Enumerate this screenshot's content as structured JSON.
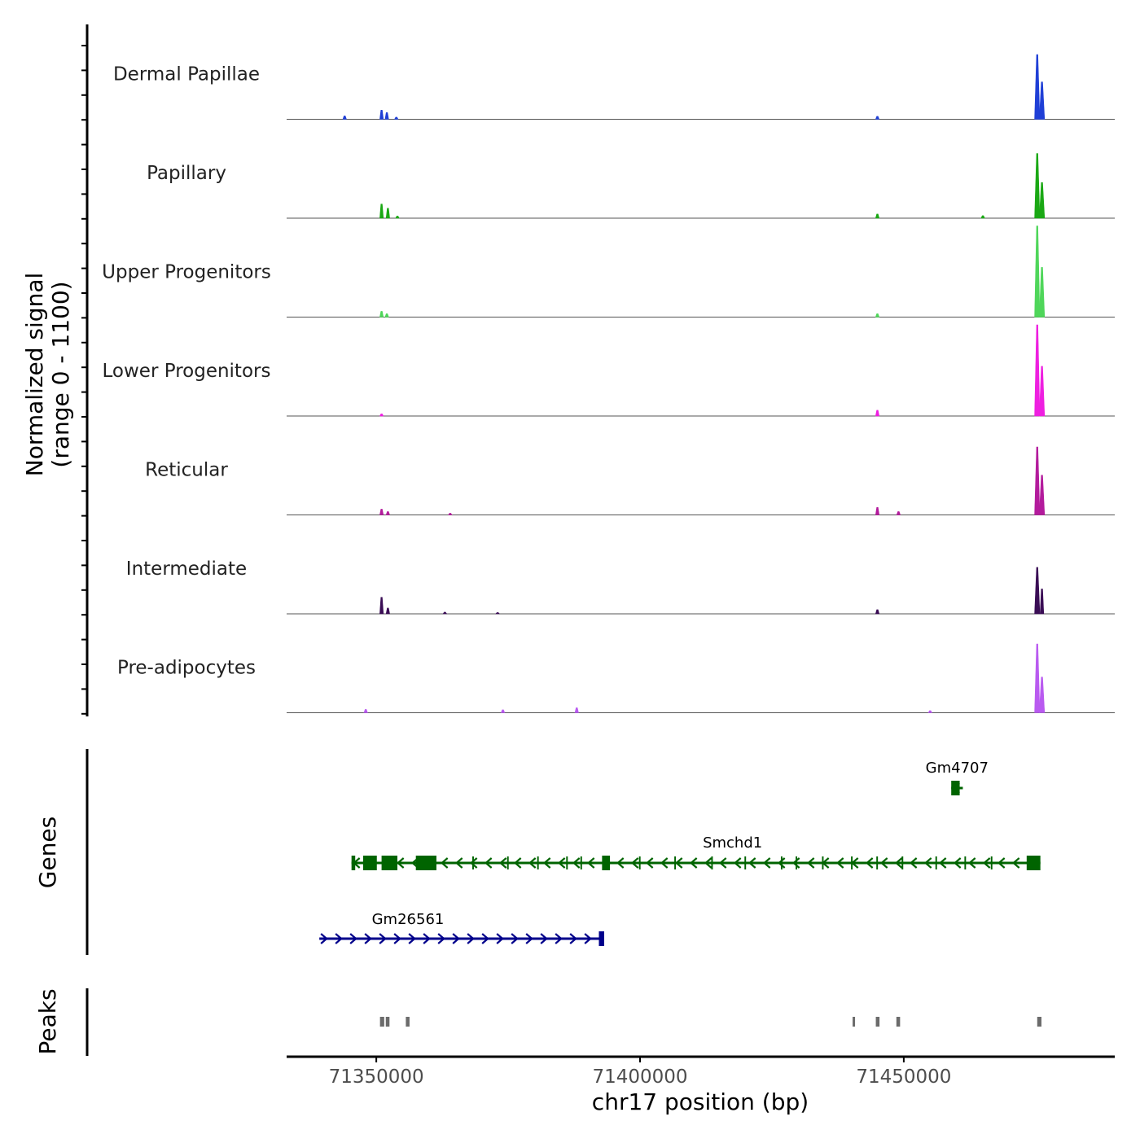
{
  "chart_data": {
    "type": "area",
    "title": "",
    "ylabel_line1": "Normalized signal",
    "ylabel_line2": "(range 0 - 1100)",
    "y_range": [
      0,
      1100
    ],
    "xlabel": "chr17 position (bp)",
    "x_range": [
      71333000,
      71490000
    ],
    "x_ticks": [
      71350000,
      71400000,
      71450000
    ],
    "x_tick_labels": [
      "71350000",
      "71400000",
      "71450000"
    ],
    "tracks": [
      {
        "name": "Dermal Papillae",
        "color": "#1f3fd6",
        "peaks": [
          {
            "x": 71344000,
            "v": 40
          },
          {
            "x": 71351000,
            "v": 110
          },
          {
            "x": 71352000,
            "v": 80
          },
          {
            "x": 71353800,
            "v": 25
          },
          {
            "x": 71445000,
            "v": 35
          },
          {
            "x": 71475300,
            "v": 780
          },
          {
            "x": 71476200,
            "v": 450
          }
        ]
      },
      {
        "name": "Papillary",
        "color": "#1aa814",
        "peaks": [
          {
            "x": 71351000,
            "v": 170
          },
          {
            "x": 71352200,
            "v": 120
          },
          {
            "x": 71354000,
            "v": 25
          },
          {
            "x": 71445000,
            "v": 50
          },
          {
            "x": 71465000,
            "v": 30
          },
          {
            "x": 71475300,
            "v": 780
          },
          {
            "x": 71476200,
            "v": 430
          }
        ]
      },
      {
        "name": "Upper Progenitors",
        "color": "#4fd65a",
        "peaks": [
          {
            "x": 71351000,
            "v": 70
          },
          {
            "x": 71352000,
            "v": 40
          },
          {
            "x": 71445000,
            "v": 40
          },
          {
            "x": 71475300,
            "v": 1100
          },
          {
            "x": 71476200,
            "v": 600
          }
        ]
      },
      {
        "name": "Lower Progenitors",
        "color": "#ee1fe0",
        "peaks": [
          {
            "x": 71351000,
            "v": 25
          },
          {
            "x": 71445000,
            "v": 70
          },
          {
            "x": 71475300,
            "v": 1100
          },
          {
            "x": 71476200,
            "v": 600
          }
        ]
      },
      {
        "name": "Reticular",
        "color": "#b31b9c",
        "peaks": [
          {
            "x": 71351000,
            "v": 70
          },
          {
            "x": 71352200,
            "v": 40
          },
          {
            "x": 71364000,
            "v": 20
          },
          {
            "x": 71445000,
            "v": 90
          },
          {
            "x": 71449000,
            "v": 40
          },
          {
            "x": 71475300,
            "v": 820
          },
          {
            "x": 71476200,
            "v": 480
          }
        ]
      },
      {
        "name": "Intermediate",
        "color": "#3a0d55",
        "peaks": [
          {
            "x": 71351000,
            "v": 200
          },
          {
            "x": 71352200,
            "v": 70
          },
          {
            "x": 71363000,
            "v": 20
          },
          {
            "x": 71373000,
            "v": 15
          },
          {
            "x": 71445000,
            "v": 50
          },
          {
            "x": 71475300,
            "v": 560
          },
          {
            "x": 71476200,
            "v": 300
          }
        ]
      },
      {
        "name": "Pre-adipocytes",
        "color": "#b95af0",
        "peaks": [
          {
            "x": 71348000,
            "v": 40
          },
          {
            "x": 71374000,
            "v": 35
          },
          {
            "x": 71388000,
            "v": 60
          },
          {
            "x": 71455000,
            "v": 25
          },
          {
            "x": 71475300,
            "v": 830
          },
          {
            "x": 71476200,
            "v": 430
          }
        ]
      }
    ],
    "genes_label": "Genes",
    "genes": [
      {
        "name": "Gm4707",
        "start": 71459000,
        "end": 71461200,
        "strand": "-",
        "color": "#006400",
        "row": 0,
        "exons": [
          [
            71459000,
            71460600
          ]
        ]
      },
      {
        "name": "Smchd1",
        "start": 71345300,
        "end": 71475900,
        "strand": "-",
        "color": "#006400",
        "row": 1,
        "exons": [
          [
            71345300,
            71346000
          ],
          [
            71347500,
            71350100
          ],
          [
            71351000,
            71354000
          ],
          [
            71357500,
            71361400
          ],
          [
            71368200,
            71368500
          ],
          [
            71374800,
            71375100
          ],
          [
            71380500,
            71380800
          ],
          [
            71386000,
            71386300
          ],
          [
            71388700,
            71389000
          ],
          [
            71392800,
            71394300
          ],
          [
            71399800,
            71400100
          ],
          [
            71406500,
            71406800
          ],
          [
            71413500,
            71413800
          ],
          [
            71419800,
            71420100
          ],
          [
            71426700,
            71427000
          ],
          [
            71429500,
            71429800
          ],
          [
            71434500,
            71434800
          ],
          [
            71440000,
            71440300
          ],
          [
            71444800,
            71445100
          ],
          [
            71449600,
            71449900
          ],
          [
            71456000,
            71456300
          ],
          [
            71461500,
            71461800
          ],
          [
            71466500,
            71466800
          ],
          [
            71473300,
            71475900
          ]
        ]
      },
      {
        "name": "Gm26561",
        "start": 71339200,
        "end": 71393200,
        "strand": "+",
        "color": "#00008b",
        "row": 2,
        "exons": [
          [
            71392200,
            71393200
          ]
        ]
      }
    ],
    "peaks_label": "Peaks",
    "peak_regions": [
      [
        71350700,
        71351500
      ],
      [
        71351800,
        71352500
      ],
      [
        71355600,
        71356300
      ],
      [
        71440300,
        71440700
      ],
      [
        71444700,
        71445400
      ],
      [
        71448600,
        71449300
      ],
      [
        71475300,
        71476100
      ]
    ],
    "colors": {
      "peak": "#6b6b6b",
      "axis": "#000000",
      "baseline": "#555555"
    }
  }
}
